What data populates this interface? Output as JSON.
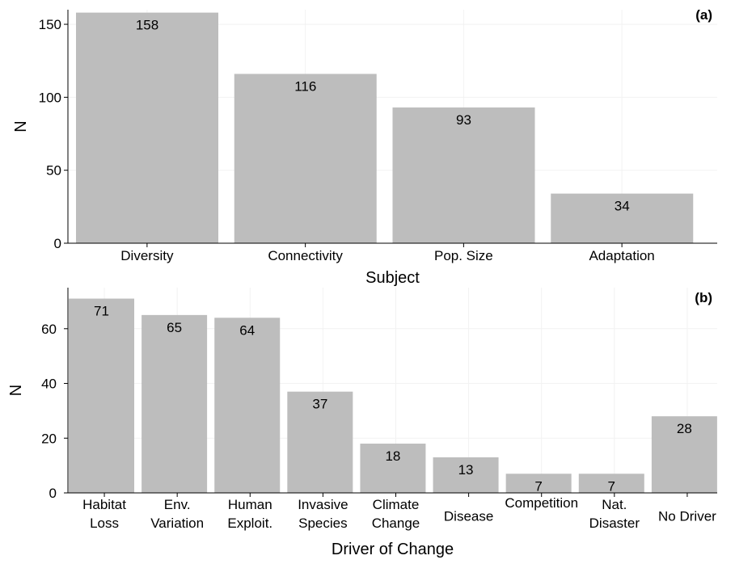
{
  "colors": {
    "bar": "#bdbdbd",
    "grid": "#f2f2f2",
    "axis": "#000000",
    "text": "#000000"
  },
  "chart_data": [
    {
      "type": "bar",
      "panel_label": "(a)",
      "xlabel": "Subject",
      "ylabel": "N",
      "categories": [
        [
          "Diversity"
        ],
        [
          "Connectivity"
        ],
        [
          "Pop. Size"
        ],
        [
          "Adaptation"
        ]
      ],
      "values": [
        158,
        116,
        93,
        34
      ],
      "ylim": [
        0,
        160
      ],
      "yticks": [
        0,
        50,
        100,
        150
      ],
      "grid": true,
      "legend": "none"
    },
    {
      "type": "bar",
      "panel_label": "(b)",
      "xlabel": "Driver of Change",
      "ylabel": "N",
      "categories": [
        [
          "Habitat",
          "Loss"
        ],
        [
          "Env.",
          "Variation"
        ],
        [
          "Human",
          "Exploit."
        ],
        [
          "Invasive",
          "Species"
        ],
        [
          "Climate",
          "Change"
        ],
        [
          "Disease"
        ],
        [
          "Competition"
        ],
        [
          "Nat.",
          "Disaster"
        ],
        [
          "No Driver"
        ]
      ],
      "values": [
        71,
        65,
        64,
        37,
        18,
        13,
        7,
        7,
        28
      ],
      "ylim": [
        0,
        75
      ],
      "yticks": [
        0,
        20,
        40,
        60
      ],
      "grid": true,
      "legend": "none"
    }
  ]
}
